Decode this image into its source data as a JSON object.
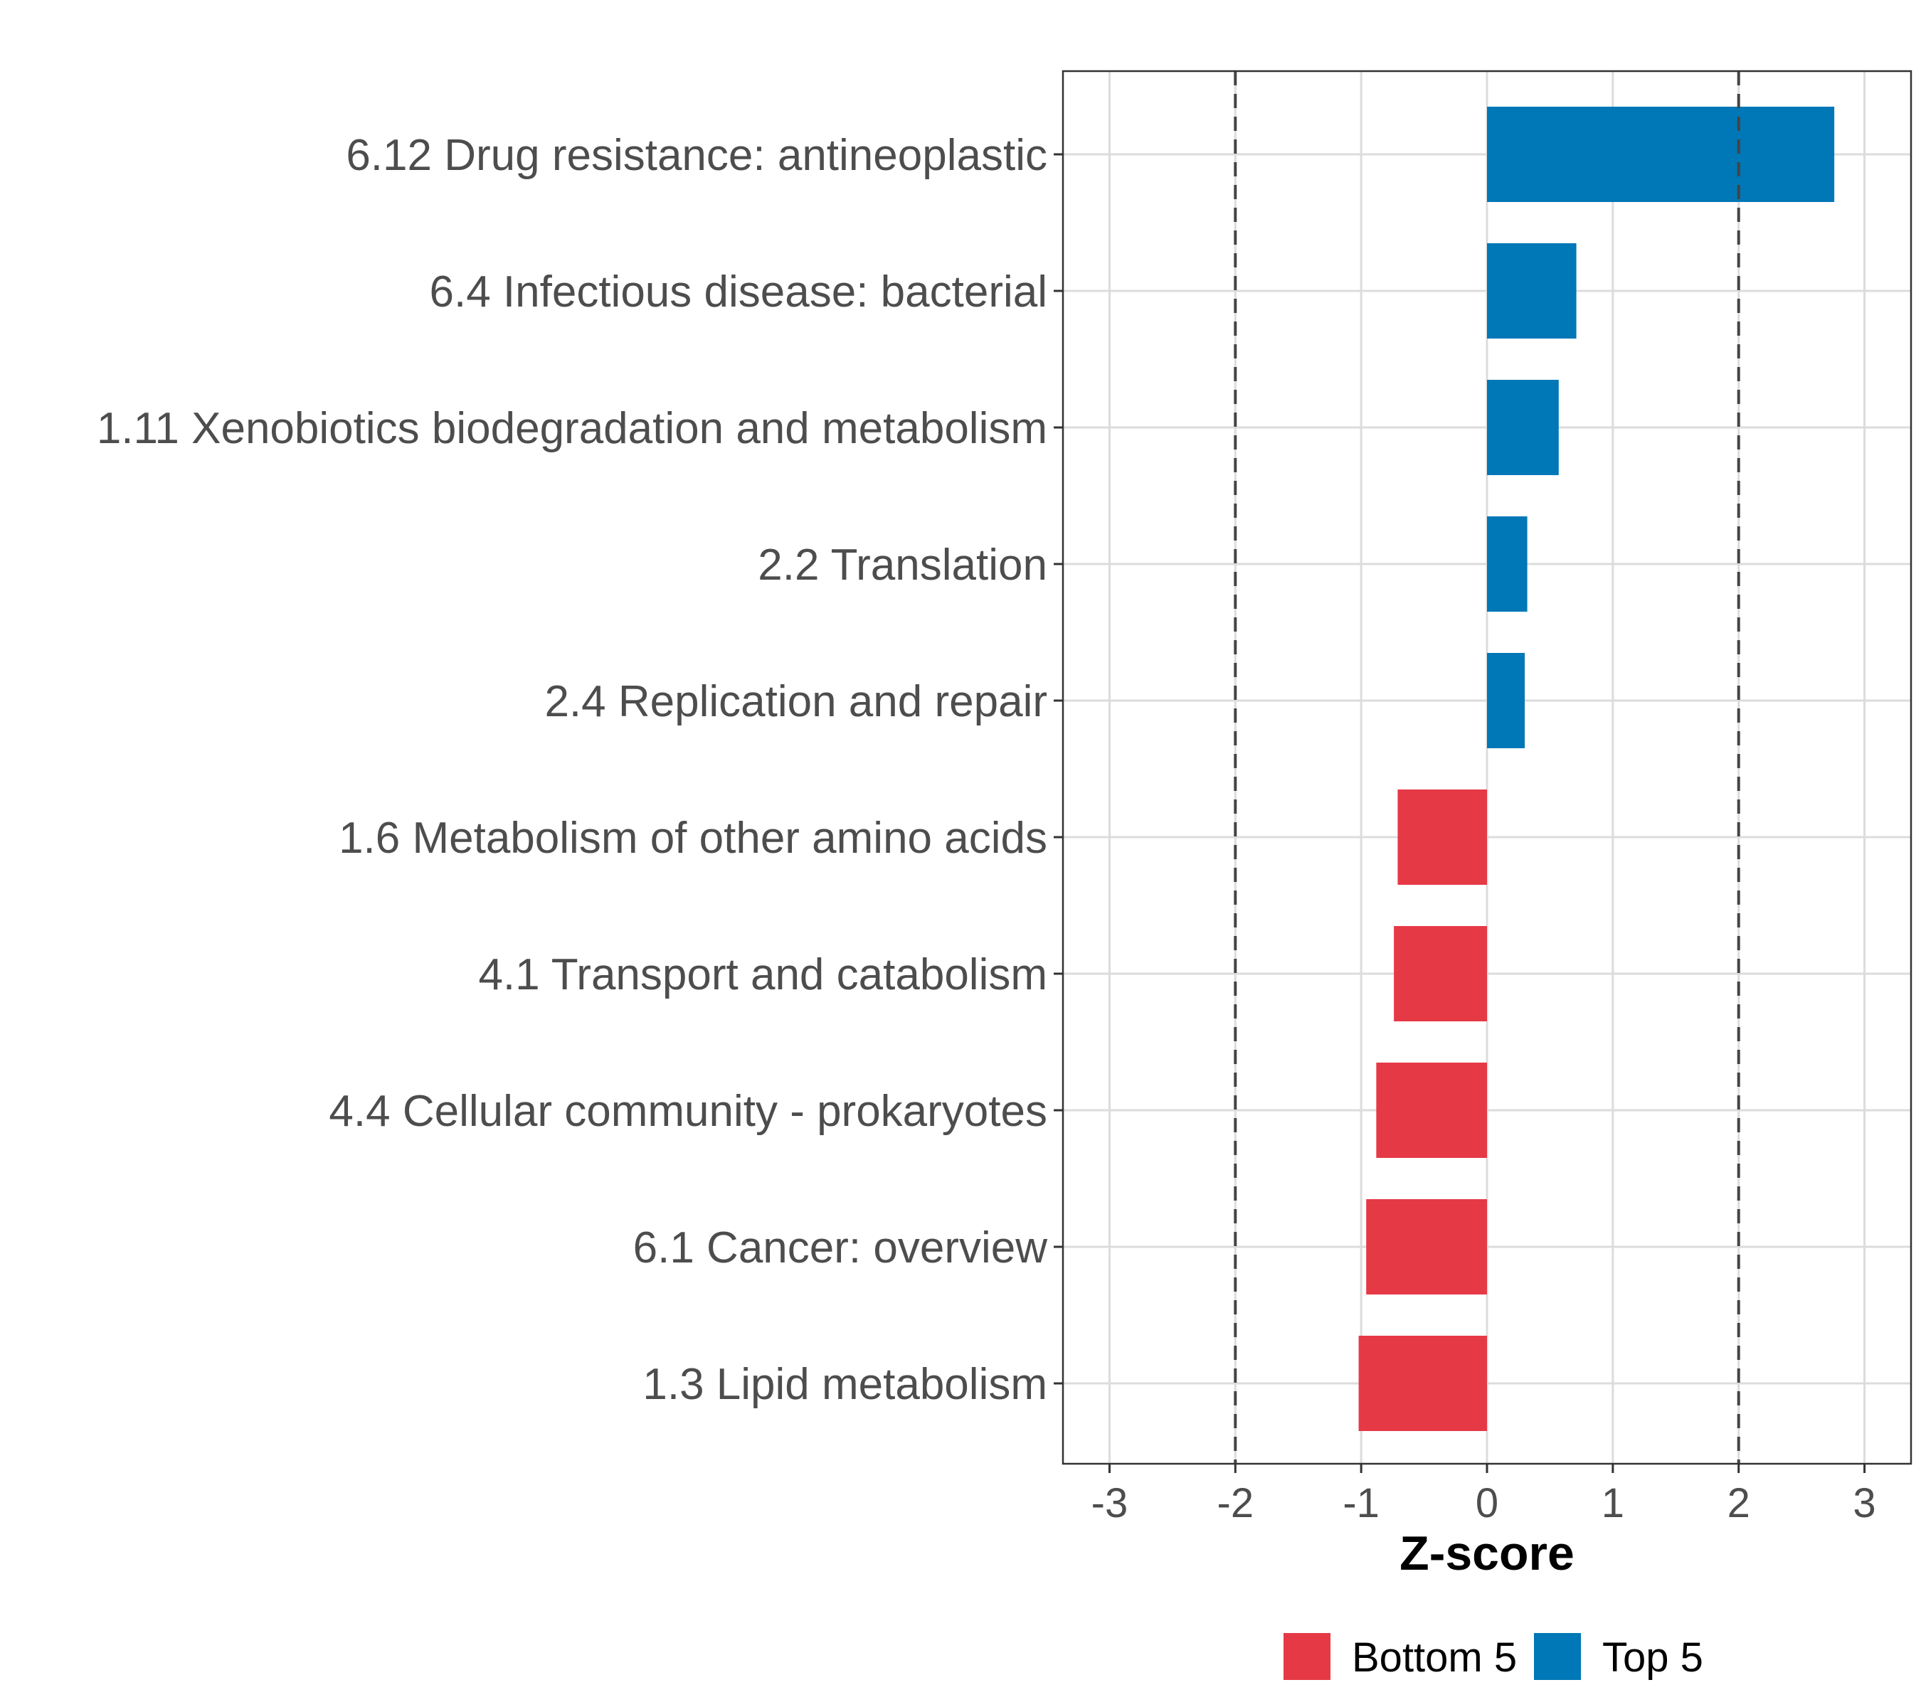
{
  "chart_data": {
    "type": "bar",
    "orientation": "horizontal",
    "categories": [
      "6.12 Drug resistance: antineoplastic",
      "6.4 Infectious disease: bacterial",
      "1.11 Xenobiotics biodegradation and metabolism",
      "2.2 Translation",
      "2.4 Replication and repair",
      "1.6 Metabolism of other amino acids",
      "4.1 Transport and catabolism",
      "4.4 Cellular community - prokaryotes",
      "6.1 Cancer: overview",
      "1.3 Lipid metabolism"
    ],
    "values": [
      2.76,
      0.71,
      0.57,
      0.32,
      0.3,
      -0.71,
      -0.74,
      -0.88,
      -0.96,
      -1.02
    ],
    "groups": [
      "Top 5",
      "Top 5",
      "Top 5",
      "Top 5",
      "Top 5",
      "Bottom 5",
      "Bottom 5",
      "Bottom 5",
      "Bottom 5",
      "Bottom 5"
    ],
    "xlabel": "Z-score",
    "ylabel": "",
    "xlim": [
      -3.37,
      3.37
    ],
    "xticks": [
      "-3",
      "-2",
      "-1",
      "0",
      "1",
      "2",
      "3"
    ],
    "reference_lines": [
      -2,
      2
    ],
    "grid": true,
    "legend": {
      "placement": "bottom",
      "entries": [
        {
          "label": "Bottom 5",
          "color": "#e63946"
        },
        {
          "label": "Top 5",
          "color": "#0077b6"
        }
      ]
    }
  }
}
